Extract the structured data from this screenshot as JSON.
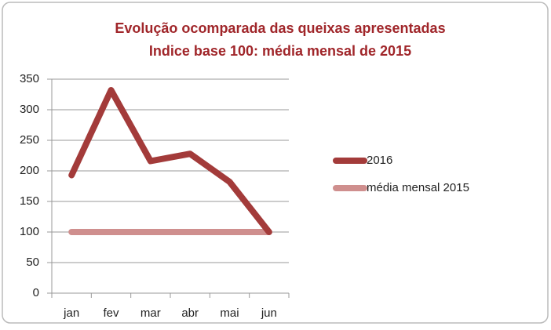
{
  "chart_data": {
    "type": "line",
    "title": "Evolução ocomparada das queixas apresentadas",
    "subtitle": "Indice base 100: média mensal de 2015",
    "categories": [
      "jan",
      "fev",
      "mar",
      "abr",
      "mai",
      "jun"
    ],
    "series": [
      {
        "name": "2016",
        "color": "#a33b3a",
        "values": [
          193,
          332,
          216,
          228,
          182,
          100
        ]
      },
      {
        "name": "média mensal 2015",
        "color": "#cf8f8e",
        "values": [
          100,
          100,
          100,
          100,
          100,
          100
        ]
      }
    ],
    "ylim": [
      0,
      350
    ],
    "yticks": [
      0,
      50,
      100,
      150,
      200,
      250,
      300,
      350
    ],
    "grid": true,
    "legend": "right"
  }
}
